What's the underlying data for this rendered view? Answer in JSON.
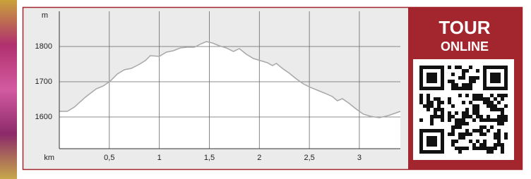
{
  "chart_data": {
    "type": "area",
    "y_label": "m",
    "x_label": "km",
    "x": [
      0,
      0.08,
      0.15,
      0.26,
      0.37,
      0.44,
      0.51,
      0.58,
      0.65,
      0.72,
      0.79,
      0.86,
      0.91,
      1.0,
      1.07,
      1.14,
      1.21,
      1.28,
      1.35,
      1.42,
      1.47,
      1.53,
      1.6,
      1.67,
      1.74,
      1.8,
      1.87,
      1.94,
      2.01,
      2.08,
      2.13,
      2.17,
      2.23,
      2.3,
      2.37,
      2.44,
      2.51,
      2.58,
      2.65,
      2.73,
      2.78,
      2.83,
      2.9,
      2.97,
      3.04,
      3.11,
      3.2,
      3.29,
      3.41
    ],
    "values": [
      1616,
      1616,
      1628,
      1656,
      1680,
      1688,
      1702,
      1722,
      1734,
      1738,
      1748,
      1760,
      1774,
      1772,
      1784,
      1788,
      1796,
      1798,
      1798,
      1808,
      1814,
      1810,
      1802,
      1796,
      1786,
      1794,
      1778,
      1766,
      1760,
      1754,
      1746,
      1752,
      1738,
      1724,
      1708,
      1694,
      1684,
      1676,
      1668,
      1658,
      1646,
      1652,
      1638,
      1622,
      1608,
      1602,
      1598,
      1604,
      1616
    ],
    "color": "#a8a8a8",
    "xlim": [
      0,
      3.41
    ],
    "ylim": [
      1510,
      1900
    ],
    "xticks": [
      {
        "value": 0.5,
        "label": "0,5"
      },
      1,
      {
        "value": 1.5,
        "label": "1,5"
      },
      2,
      {
        "value": 2.5,
        "label": "2,5"
      },
      3
    ],
    "yticks": [
      1600,
      1700,
      1800
    ],
    "grid": true
  },
  "qr_panel": {
    "title": "TOUR",
    "subtitle": "ONLINE"
  }
}
